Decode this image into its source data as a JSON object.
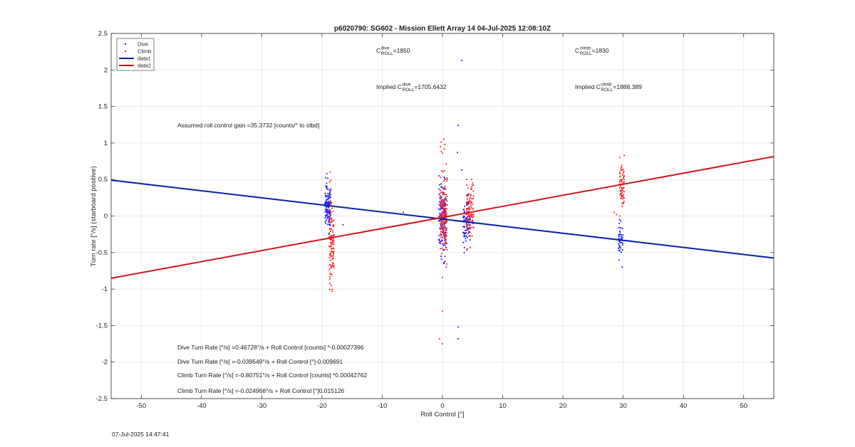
{
  "chart_data": {
    "type": "scatter",
    "title": "p6020790: SG602 - Mission Ellett Array 14 04-Jul-2025 12:08:10Z",
    "xlabel": "Roll Control [°]",
    "ylabel": "Turn rate [°/s] (starboard positive)",
    "xlim": [
      -55,
      55
    ],
    "ylim": [
      -2.5,
      2.5
    ],
    "xticks": [
      "-50",
      "-40",
      "-30",
      "-20",
      "-10",
      "0",
      "10",
      "20",
      "30",
      "40",
      "50"
    ],
    "yticks": [
      "-2.5",
      "-2",
      "-1.5",
      "-1",
      "-0.5",
      "0",
      "0.5",
      "1",
      "1.5",
      "2",
      "2.5"
    ],
    "grid": true,
    "legend_position": "top-left",
    "legend": [
      {
        "name": "Dive",
        "kind": "dot",
        "color": "#1a1aff"
      },
      {
        "name": "Climb",
        "kind": "dot",
        "color": "#ff1a1a"
      },
      {
        "name": "data1",
        "kind": "line",
        "color": "#0a1fa8"
      },
      {
        "name": "data2",
        "kind": "line",
        "color": "#d0161d"
      }
    ],
    "lines": [
      {
        "name": "data1",
        "color": "#0a1fa8",
        "x": [
          -55,
          55
        ],
        "y": [
          0.4915,
          -0.5751
        ]
      },
      {
        "name": "data2",
        "color": "#d0161d",
        "x": [
          -55,
          55
        ],
        "y": [
          -0.8513,
          0.8137
        ]
      }
    ],
    "clusters": [
      {
        "series": "Dive",
        "color": "#1a1aff",
        "x": -19.0,
        "xspread": 0.5,
        "ymin": -0.25,
        "ymax": 0.58,
        "center": 0.12,
        "n": 120
      },
      {
        "series": "Climb",
        "color": "#ff1a1a",
        "x": -18.4,
        "xspread": 0.4,
        "ymin": -1.03,
        "ymax": 0.6,
        "center": -0.33,
        "n": 110
      },
      {
        "series": "Dive",
        "color": "#1a1aff",
        "x": 0.0,
        "xspread": 0.6,
        "ymin": -0.65,
        "ymax": 0.55,
        "center": -0.02,
        "n": 150
      },
      {
        "series": "Climb",
        "color": "#ff1a1a",
        "x": 0.2,
        "xspread": 0.6,
        "ymin": -0.7,
        "ymax": 1.05,
        "center": -0.05,
        "n": 170
      },
      {
        "series": "Dive",
        "color": "#1a1aff",
        "x": 4.0,
        "xspread": 0.6,
        "ymin": -0.5,
        "ymax": 0.3,
        "center": -0.08,
        "n": 90
      },
      {
        "series": "Climb",
        "color": "#ff1a1a",
        "x": 4.6,
        "xspread": 0.6,
        "ymin": -0.45,
        "ymax": 0.5,
        "center": 0.05,
        "n": 110
      },
      {
        "series": "Climb",
        "color": "#ff1a1a",
        "x": 29.8,
        "xspread": 0.4,
        "ymin": 0.0,
        "ymax": 0.83,
        "center": 0.43,
        "n": 70
      },
      {
        "series": "Dive",
        "color": "#1a1aff",
        "x": 29.6,
        "xspread": 0.4,
        "ymin": -0.7,
        "ymax": -0.05,
        "center": -0.33,
        "n": 45
      }
    ],
    "outliers": [
      {
        "series": "Dive",
        "color": "#1a1aff",
        "points": [
          [
            3.2,
            2.13
          ],
          [
            2.6,
            1.24
          ],
          [
            2.5,
            0.87
          ],
          [
            3.2,
            0.63
          ],
          [
            2.6,
            -1.52
          ],
          [
            2.6,
            -1.68
          ],
          [
            -6.5,
            0.05
          ],
          [
            -16.5,
            -0.12
          ]
        ]
      },
      {
        "series": "Climb",
        "color": "#ff1a1a",
        "points": [
          [
            0.0,
            -1.3
          ],
          [
            0.0,
            -1.75
          ],
          [
            -0.5,
            -1.68
          ],
          [
            0.0,
            -0.84
          ],
          [
            0.0,
            0.86
          ],
          [
            28.5,
            0.05
          ],
          [
            28.9,
            0.02
          ],
          [
            0.4,
            0.98
          ]
        ]
      }
    ],
    "annotations": [
      {
        "id": "c-dive",
        "pre": "C",
        "sup": "dive",
        "sub": "ROLL",
        "post": " =1850"
      },
      {
        "id": "c-climb",
        "pre": "C",
        "sup": "climb",
        "sub": "ROLL",
        "post": " =1830"
      },
      {
        "id": "implied-dive",
        "pre": "Implied C",
        "sup": "dive",
        "sub": "ROLL",
        "post": " =1705.6432"
      },
      {
        "id": "implied-climb",
        "pre": "Implied C",
        "sup": "climb",
        "sub": "ROLL",
        "post": " =1888.389"
      },
      {
        "id": "gain",
        "text": "Assumed roll control gain =35.3732 [counts/° to stbd]"
      },
      {
        "id": "dive-counts",
        "text": "Dive Turn Rate [°/s] =0.46728°/s + Roll Control [counts] *-0.00027396"
      },
      {
        "id": "dive-deg",
        "text": "Dive Turn Rate [°/s] =-0.039549°/s + Roll Control [°]-0.009691"
      },
      {
        "id": "climb-counts",
        "text": "Climb Turn Rate [°/s] =-0.80751°/s + Roll Control [counts] *0.00042762"
      },
      {
        "id": "climb-deg",
        "text": "Climb Turn Rate [°/s] =-0.024968°/s + Roll Control [°]0.015126"
      }
    ]
  },
  "footer": {
    "timestamp": "07-Jul-2025 14:47:41"
  }
}
